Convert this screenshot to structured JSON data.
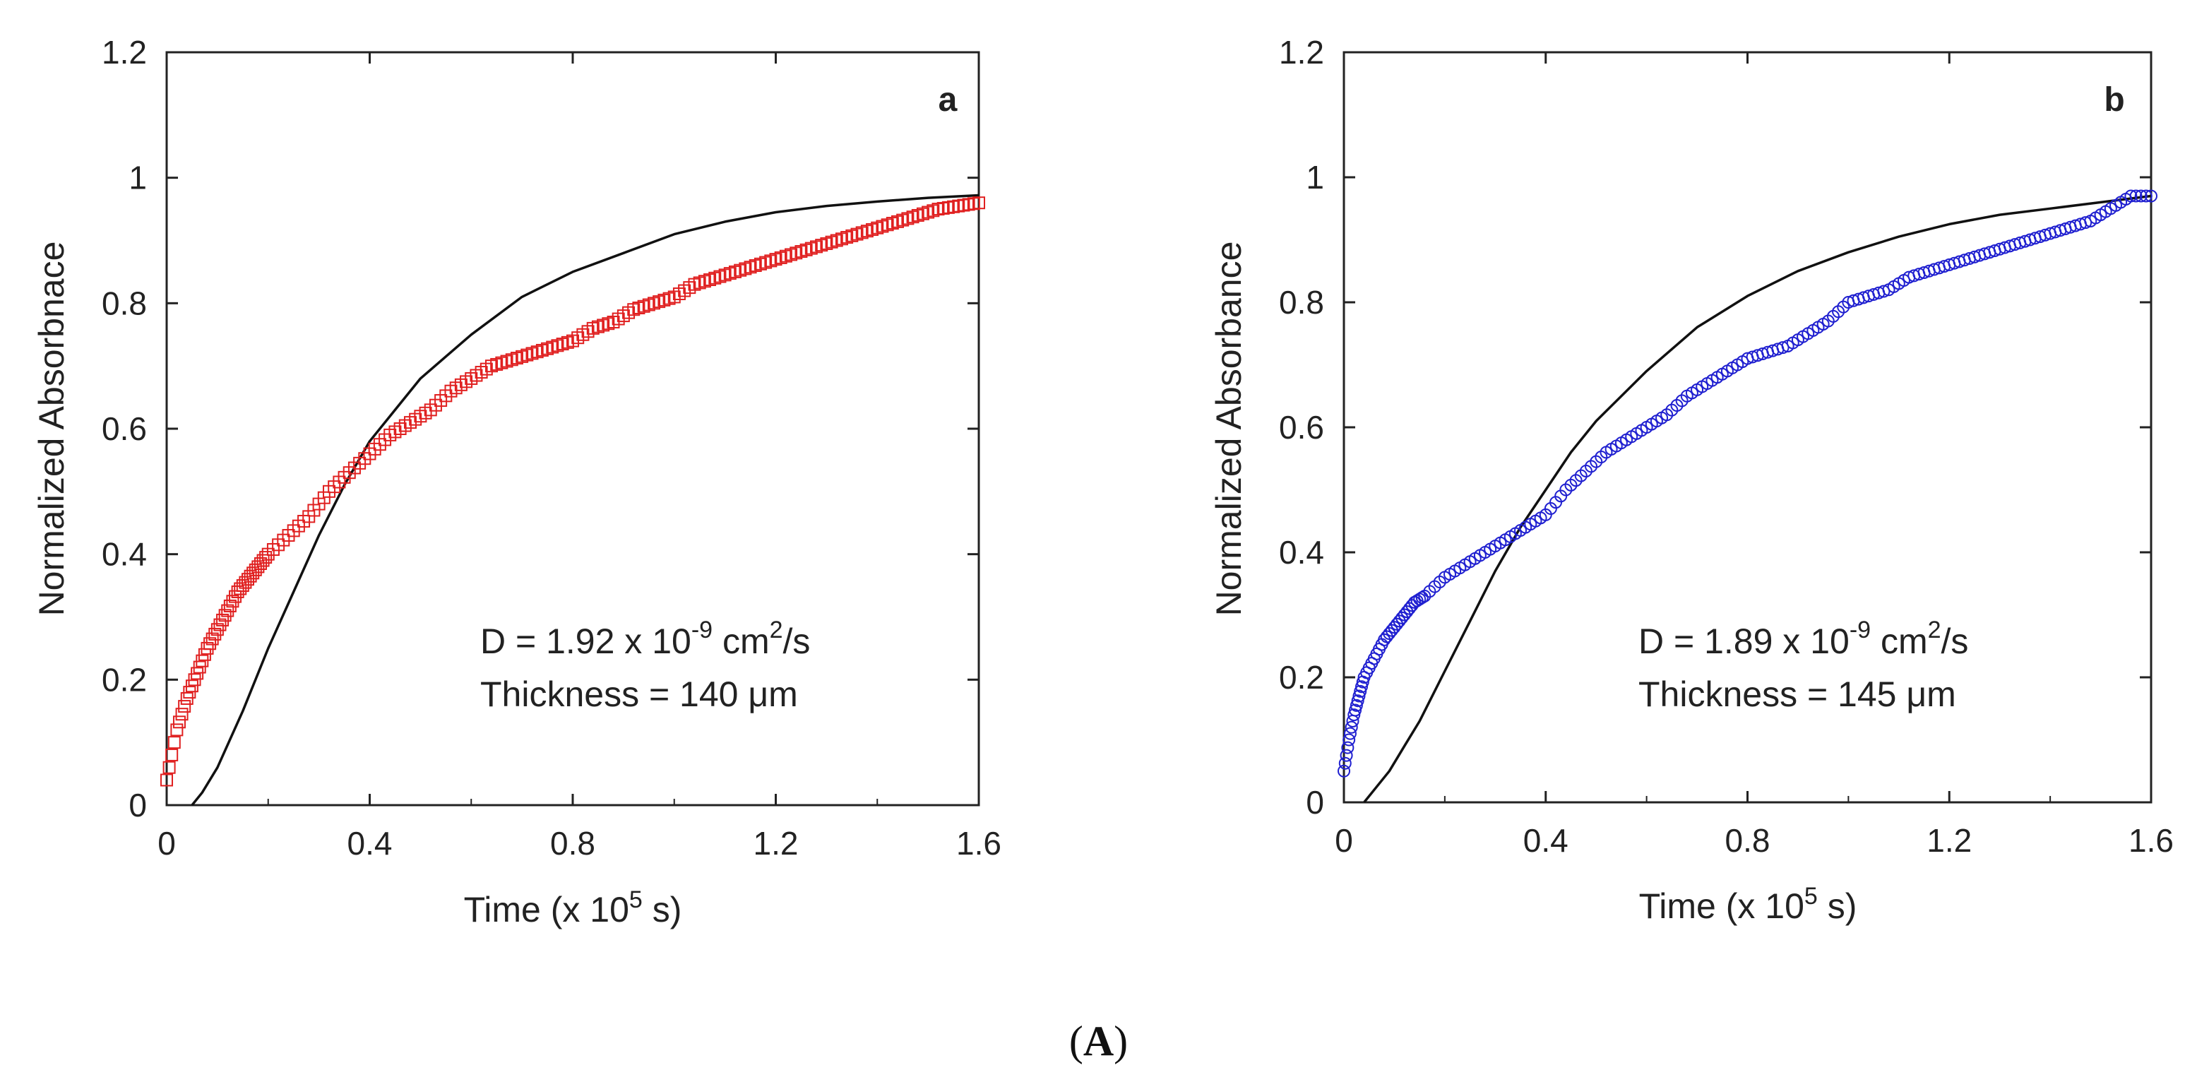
{
  "chart_data": [
    {
      "type": "scatter",
      "panel_label": "a",
      "xlabel_prefix": "Time (x 10",
      "xlabel_exp": "5",
      "xlabel_suffix": " s)",
      "ylabel": "Normalized Absorbnace",
      "xlim": [
        0,
        1.6
      ],
      "ylim": [
        0,
        1.2
      ],
      "x_ticks": [
        "0",
        "0.4",
        "0.8",
        "1.2",
        "1.6"
      ],
      "y_ticks": [
        "0",
        "0.2",
        "0.4",
        "0.6",
        "0.8",
        "1",
        "1.2"
      ],
      "annotation": {
        "line1_prefix": "D = 1.92 x 10",
        "line1_exp": "-9",
        "line1_mid": " cm",
        "line1_exp2": "2",
        "line1_suffix": "/s",
        "line2": "Thickness = 140 μm"
      },
      "series": [
        {
          "name": "experimental",
          "marker": "square",
          "color": "#e02020",
          "x": [
            0.0,
            0.02,
            0.04,
            0.06,
            0.08,
            0.1,
            0.12,
            0.14,
            0.16,
            0.18,
            0.2,
            0.24,
            0.28,
            0.32,
            0.36,
            0.4,
            0.44,
            0.48,
            0.52,
            0.56,
            0.6,
            0.64,
            0.68,
            0.72,
            0.76,
            0.8,
            0.84,
            0.88,
            0.92,
            0.96,
            1.0,
            1.04,
            1.08,
            1.12,
            1.16,
            1.2,
            1.24,
            1.28,
            1.32,
            1.36,
            1.4,
            1.44,
            1.48,
            1.52,
            1.56,
            1.6
          ],
          "y": [
            0.04,
            0.12,
            0.17,
            0.21,
            0.25,
            0.28,
            0.31,
            0.34,
            0.36,
            0.38,
            0.4,
            0.43,
            0.46,
            0.5,
            0.53,
            0.56,
            0.59,
            0.61,
            0.63,
            0.66,
            0.68,
            0.7,
            0.71,
            0.72,
            0.73,
            0.74,
            0.76,
            0.77,
            0.79,
            0.8,
            0.81,
            0.83,
            0.84,
            0.85,
            0.86,
            0.87,
            0.88,
            0.89,
            0.9,
            0.91,
            0.92,
            0.93,
            0.94,
            0.95,
            0.955,
            0.96
          ]
        },
        {
          "name": "fit",
          "style": "line",
          "color": "#111111",
          "x": [
            0.05,
            0.07,
            0.1,
            0.15,
            0.2,
            0.25,
            0.3,
            0.35,
            0.4,
            0.45,
            0.5,
            0.6,
            0.7,
            0.8,
            0.9,
            1.0,
            1.1,
            1.2,
            1.3,
            1.4,
            1.5,
            1.6
          ],
          "y": [
            0.0,
            0.02,
            0.06,
            0.15,
            0.25,
            0.34,
            0.43,
            0.51,
            0.58,
            0.63,
            0.68,
            0.75,
            0.81,
            0.85,
            0.88,
            0.91,
            0.93,
            0.945,
            0.955,
            0.962,
            0.968,
            0.972
          ]
        }
      ]
    },
    {
      "type": "scatter",
      "panel_label": "b",
      "xlabel_prefix": "Time (x 10",
      "xlabel_exp": "5",
      "xlabel_suffix": " s)",
      "ylabel": "Normalized Absorbance",
      "xlim": [
        0,
        1.6
      ],
      "ylim": [
        0,
        1.2
      ],
      "x_ticks": [
        "0",
        "0.4",
        "0.8",
        "1.2",
        "1.6"
      ],
      "y_ticks": [
        "0",
        "0.2",
        "0.4",
        "0.6",
        "0.8",
        "1",
        "1.2"
      ],
      "annotation": {
        "line1_prefix": "D = 1.89 x 10",
        "line1_exp": "-9",
        "line1_mid": " cm",
        "line1_exp2": "2",
        "line1_suffix": "/s",
        "line2": "Thickness = 145 μm"
      },
      "series": [
        {
          "name": "experimental",
          "marker": "circle",
          "color": "#2020d0",
          "x": [
            0.0,
            0.01,
            0.02,
            0.03,
            0.04,
            0.06,
            0.08,
            0.1,
            0.12,
            0.14,
            0.16,
            0.2,
            0.24,
            0.28,
            0.32,
            0.36,
            0.4,
            0.44,
            0.48,
            0.52,
            0.56,
            0.6,
            0.64,
            0.68,
            0.72,
            0.76,
            0.8,
            0.84,
            0.88,
            0.92,
            0.96,
            1.0,
            1.04,
            1.08,
            1.12,
            1.16,
            1.2,
            1.24,
            1.28,
            1.32,
            1.36,
            1.4,
            1.44,
            1.48,
            1.52,
            1.56,
            1.6
          ],
          "y": [
            0.05,
            0.1,
            0.14,
            0.17,
            0.2,
            0.23,
            0.26,
            0.28,
            0.3,
            0.32,
            0.33,
            0.36,
            0.38,
            0.4,
            0.42,
            0.44,
            0.46,
            0.5,
            0.53,
            0.56,
            0.58,
            0.6,
            0.62,
            0.65,
            0.67,
            0.69,
            0.71,
            0.72,
            0.73,
            0.75,
            0.77,
            0.8,
            0.81,
            0.82,
            0.84,
            0.85,
            0.86,
            0.87,
            0.88,
            0.89,
            0.9,
            0.91,
            0.92,
            0.93,
            0.95,
            0.97,
            0.97
          ]
        },
        {
          "name": "fit",
          "style": "line",
          "color": "#111111",
          "x": [
            0.04,
            0.06,
            0.09,
            0.12,
            0.15,
            0.2,
            0.25,
            0.3,
            0.35,
            0.4,
            0.45,
            0.5,
            0.6,
            0.7,
            0.8,
            0.9,
            1.0,
            1.1,
            1.2,
            1.3,
            1.4,
            1.5,
            1.6
          ],
          "y": [
            0.0,
            0.02,
            0.05,
            0.09,
            0.13,
            0.21,
            0.29,
            0.37,
            0.44,
            0.5,
            0.56,
            0.61,
            0.69,
            0.76,
            0.81,
            0.85,
            0.88,
            0.905,
            0.925,
            0.94,
            0.95,
            0.96,
            0.97
          ]
        }
      ]
    }
  ],
  "figure_caption": {
    "open": "(",
    "letter": "A",
    "close": ")"
  }
}
